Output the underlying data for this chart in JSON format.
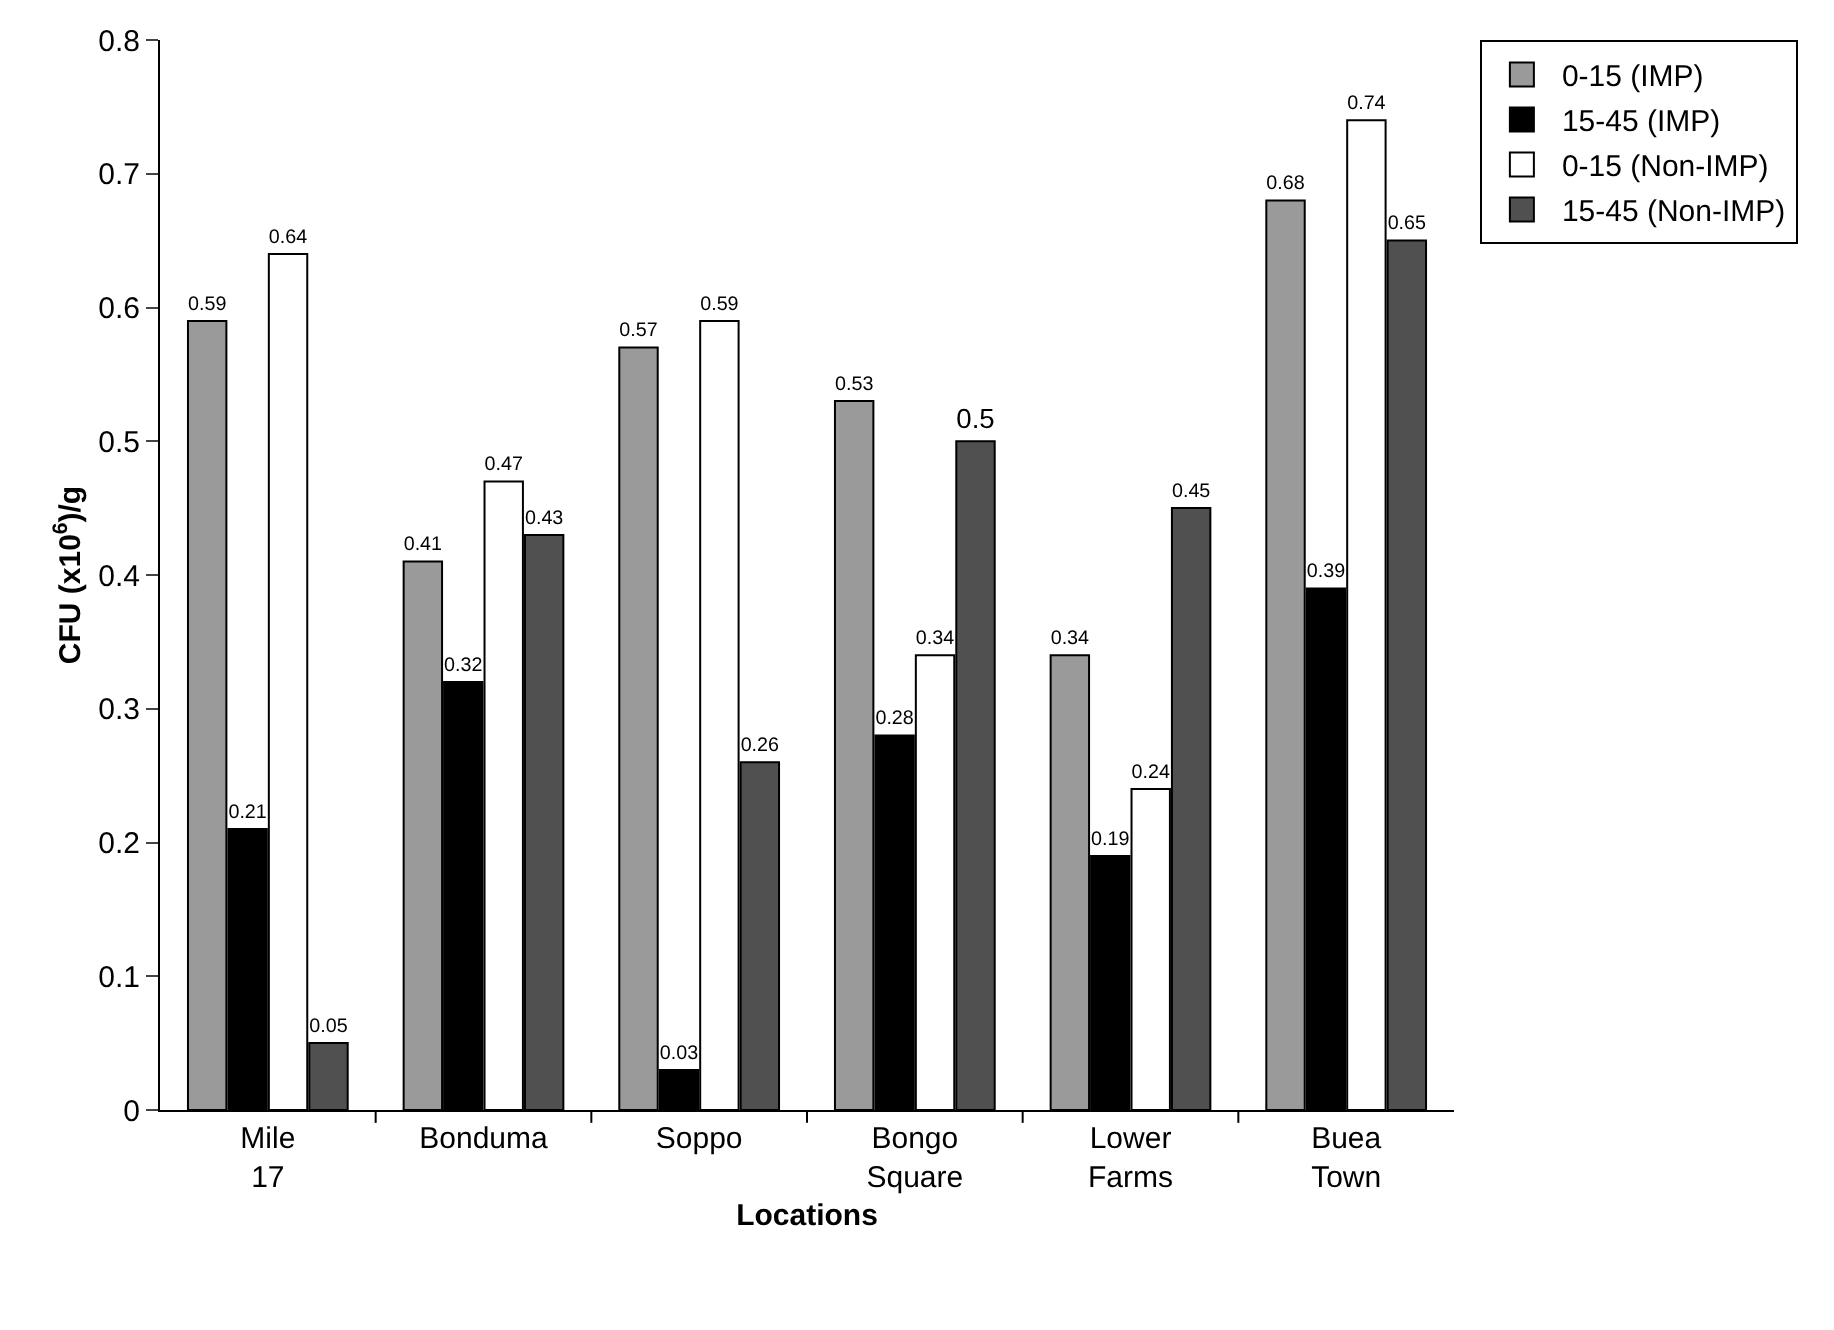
{
  "chart_data": {
    "type": "bar",
    "xlabel": "Locations",
    "ylabel": "CFU (x10$^{6}$)/g",
    "categories": [
      "Mile 17",
      "Bonduma",
      "Soppo",
      "Bongo Square",
      "Lower Farms",
      "Buea Town"
    ],
    "series": [
      {
        "name": "0-15 (IMP)",
        "color": "#9a9a9a",
        "values": [
          0.59,
          0.41,
          0.57,
          0.53,
          0.34,
          0.68
        ]
      },
      {
        "name": "15-45 (IMP)",
        "color": "#000000",
        "values": [
          0.21,
          0.32,
          0.03,
          0.28,
          0.19,
          0.39
        ]
      },
      {
        "name": "0-15 (Non-IMP)",
        "color": "#ffffff",
        "values": [
          0.64,
          0.47,
          0.59,
          0.34,
          0.24,
          0.74
        ]
      },
      {
        "name": "15-45 (Non-IMP)",
        "color": "#505050",
        "values": [
          0.05,
          0.43,
          0.26,
          0.5,
          0.45,
          0.65
        ]
      }
    ],
    "ylim": [
      0,
      0.8
    ],
    "yticks": [
      0,
      0.1,
      0.2,
      0.3,
      0.4,
      0.5,
      0.6,
      0.7,
      0.8
    ],
    "grid": false,
    "legend": "top right",
    "data_labels": true
  }
}
